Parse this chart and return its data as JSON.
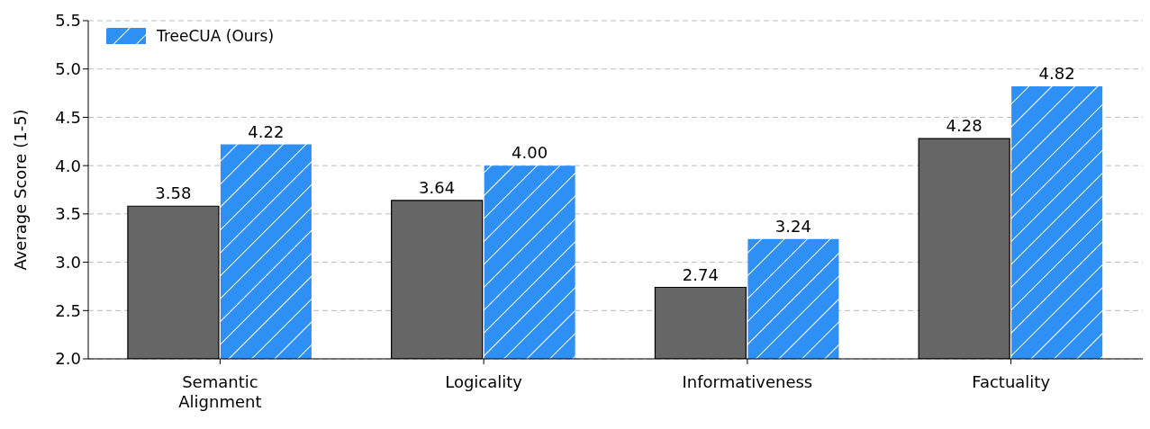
{
  "chart_data": {
    "type": "bar",
    "ylabel": "Average Score (1-5)",
    "categories": [
      "Semantic Alignment",
      "Logicality",
      "Informativeness",
      "Factuality"
    ],
    "series": [
      {
        "color": "#666666",
        "values": [
          3.58,
          3.64,
          2.74,
          4.28
        ],
        "value_labels": [
          "3.58",
          "3.64",
          "2.74",
          "4.28"
        ]
      },
      {
        "name": "TreeCUA (Ours)",
        "color": "#2e8ff5",
        "values": [
          4.22,
          4.0,
          3.24,
          4.82
        ],
        "value_labels": [
          "4.22",
          "4.00",
          "3.24",
          "4.82"
        ]
      }
    ],
    "ylim": [
      2.0,
      5.5
    ],
    "yticks": [
      {
        "value": 2,
        "label": "2.0"
      },
      {
        "value": 2.5,
        "label": "2.5"
      },
      {
        "value": 3,
        "label": "3.0"
      },
      {
        "value": 3.5,
        "label": "3.5"
      },
      {
        "value": 4,
        "label": "4.0"
      },
      {
        "value": 4.5,
        "label": "4.5"
      },
      {
        "value": 5,
        "label": "5.0"
      },
      {
        "value": 5.5,
        "label": "5.5"
      }
    ],
    "grid": "y",
    "legend": "top left"
  }
}
